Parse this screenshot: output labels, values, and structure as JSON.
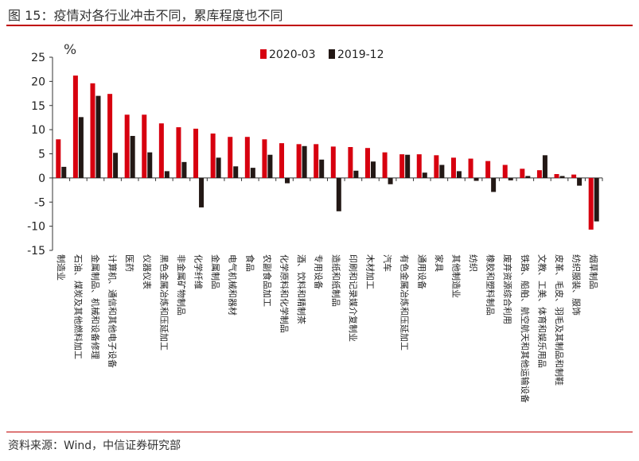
{
  "header": {
    "figure_label": "图 15：",
    "title": "疫情对各行业冲击不同，累库程度也不同"
  },
  "footer": {
    "source": "资料来源：Wind，中信证券研究部"
  },
  "colors": {
    "series_2020": "#d7000f",
    "series_2019": "#231815",
    "rule": "#c00000",
    "axis": "#333333"
  },
  "chart_data": {
    "type": "bar",
    "title": "疫情对各行业冲击不同，累库程度也不同",
    "ylabel": "%",
    "xlabel": "",
    "ylim": [
      -15,
      25
    ],
    "yticks": [
      -15,
      -10,
      -5,
      0,
      5,
      10,
      15,
      20,
      25
    ],
    "grid": false,
    "legend_position": "top-right",
    "categories": [
      "制造业",
      "石油、煤炭及其他燃料加工",
      "金属制品、机械和设备修理",
      "计算机、通信和其他电子设备",
      "医药",
      "仪器仪表",
      "黑色金属冶炼和压延加工",
      "非金属矿物制品",
      "化学纤维",
      "金属制品",
      "电气机械和器材",
      "食品",
      "农副食品加工",
      "化学原料和化学制品",
      "酒、饮料和精制茶",
      "专用设备",
      "造纸和纸制品",
      "印刷和记录媒介复制业",
      "木材加工",
      "汽车",
      "有色金属冶炼和压延加工",
      "通用设备",
      "家具",
      "其他制造业",
      "纺织",
      "橡胶和塑料制品",
      "废弃资源综合利用",
      "铁路、船舶、航空航天和其他运输设备",
      "文教、工美、体育和娱乐用品",
      "皮革、毛皮、羽毛及其制品和制鞋",
      "纺织服装、服饰",
      "烟草制品"
    ],
    "series": [
      {
        "name": "2020-03",
        "color": "#d7000f",
        "values": [
          8.0,
          21.2,
          19.6,
          17.4,
          13.1,
          13.1,
          11.3,
          10.5,
          10.2,
          9.2,
          8.5,
          8.5,
          8.0,
          7.2,
          7.0,
          7.0,
          6.5,
          6.4,
          6.2,
          5.3,
          4.9,
          4.9,
          4.7,
          4.2,
          4.0,
          3.5,
          2.7,
          1.9,
          1.6,
          0.8,
          0.7,
          -10.7
        ]
      },
      {
        "name": "2019-12",
        "color": "#231815",
        "values": [
          2.3,
          12.6,
          17.0,
          5.2,
          8.7,
          5.3,
          1.4,
          3.3,
          -6.1,
          4.2,
          2.4,
          2.1,
          4.8,
          -1.1,
          6.6,
          3.8,
          -6.9,
          1.5,
          3.4,
          -1.3,
          4.8,
          1.1,
          2.7,
          1.4,
          -0.6,
          -2.9,
          -0.5,
          0.4,
          4.7,
          0.4,
          -1.6,
          -9.0
        ]
      }
    ]
  }
}
